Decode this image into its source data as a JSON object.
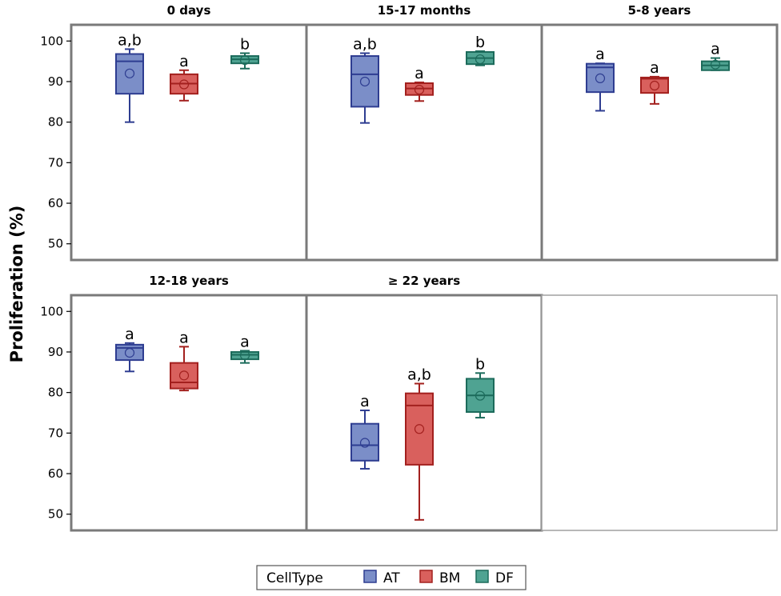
{
  "chart_data": {
    "type": "box",
    "ylabel": "Proliferation  (%)",
    "ylim": [
      46,
      104
    ],
    "yticks": [
      50,
      60,
      70,
      80,
      90,
      100
    ],
    "grid": false,
    "legend": {
      "title": "CellType",
      "position": "bottom",
      "entries": [
        "AT",
        "BM",
        "DF"
      ]
    },
    "series_colors": {
      "AT": {
        "fill": "#7b8ec8",
        "stroke": "#2e3d91"
      },
      "BM": {
        "fill": "#d9605d",
        "stroke": "#a3201e"
      },
      "DF": {
        "fill": "#4fa392",
        "stroke": "#1c6b5b"
      }
    },
    "panels": [
      {
        "title": "0 days",
        "boxes": [
          {
            "cell_type": "AT",
            "min": 80,
            "q1": 87,
            "median": 95,
            "q3": 96.8,
            "max": 98,
            "mean": 92,
            "letter": "a,b"
          },
          {
            "cell_type": "BM",
            "min": 85.3,
            "q1": 87,
            "median": 89.5,
            "q3": 91.8,
            "max": 92.8,
            "mean": 89.3,
            "letter": "a"
          },
          {
            "cell_type": "DF",
            "min": 93.2,
            "q1": 94.5,
            "median": 95.5,
            "q3": 96.3,
            "max": 97,
            "mean": 95.3,
            "letter": "b"
          }
        ]
      },
      {
        "title": "15-17 months",
        "boxes": [
          {
            "cell_type": "AT",
            "min": 79.8,
            "q1": 83.8,
            "median": 91.8,
            "q3": 96.3,
            "max": 97,
            "mean": 90,
            "letter": "a,b"
          },
          {
            "cell_type": "BM",
            "min": 85.2,
            "q1": 86.7,
            "median": 88.3,
            "q3": 89.6,
            "max": 89.8,
            "mean": 88,
            "letter": "a"
          },
          {
            "cell_type": "DF",
            "min": 94,
            "q1": 94.3,
            "median": 95.8,
            "q3": 97.3,
            "max": 97.5,
            "mean": 95.5,
            "letter": "b"
          }
        ]
      },
      {
        "title": "5-8 years",
        "boxes": [
          {
            "cell_type": "AT",
            "min": 82.8,
            "q1": 87.4,
            "median": 93.5,
            "q3": 94.4,
            "max": 94.5,
            "mean": 90.8,
            "letter": "a"
          },
          {
            "cell_type": "BM",
            "min": 84.5,
            "q1": 87.2,
            "median": 90.7,
            "q3": 91,
            "max": 91.2,
            "mean": 89,
            "letter": "a"
          },
          {
            "cell_type": "DF",
            "min": 92.8,
            "q1": 92.8,
            "median": 94,
            "q3": 95,
            "max": 95.8,
            "mean": 94.2,
            "letter": "a"
          }
        ]
      },
      {
        "title": "12-18 years",
        "boxes": [
          {
            "cell_type": "AT",
            "min": 85.2,
            "q1": 88,
            "median": 91,
            "q3": 91.8,
            "max": 92.2,
            "mean": 89.8,
            "letter": "a"
          },
          {
            "cell_type": "BM",
            "min": 80.5,
            "q1": 81,
            "median": 82.5,
            "q3": 87.3,
            "max": 91.3,
            "mean": 84.2,
            "letter": "a"
          },
          {
            "cell_type": "DF",
            "min": 87.3,
            "q1": 88.2,
            "median": 89.3,
            "q3": 90,
            "max": 90.3,
            "mean": 89.2,
            "letter": "a"
          }
        ]
      },
      {
        "title": "≥ 22 years",
        "boxes": [
          {
            "cell_type": "AT",
            "min": 61.2,
            "q1": 63.2,
            "median": 67,
            "q3": 72.3,
            "max": 75.6,
            "mean": 67.6,
            "letter": "a"
          },
          {
            "cell_type": "BM",
            "min": 48.6,
            "q1": 62.2,
            "median": 76.8,
            "q3": 79.8,
            "max": 82.2,
            "mean": 71,
            "letter": "a,b"
          },
          {
            "cell_type": "DF",
            "min": 73.8,
            "q1": 75.2,
            "median": 79.3,
            "q3": 83.4,
            "max": 84.8,
            "mean": 79.2,
            "letter": "b"
          }
        ]
      },
      {
        "title": "",
        "boxes": []
      }
    ]
  }
}
